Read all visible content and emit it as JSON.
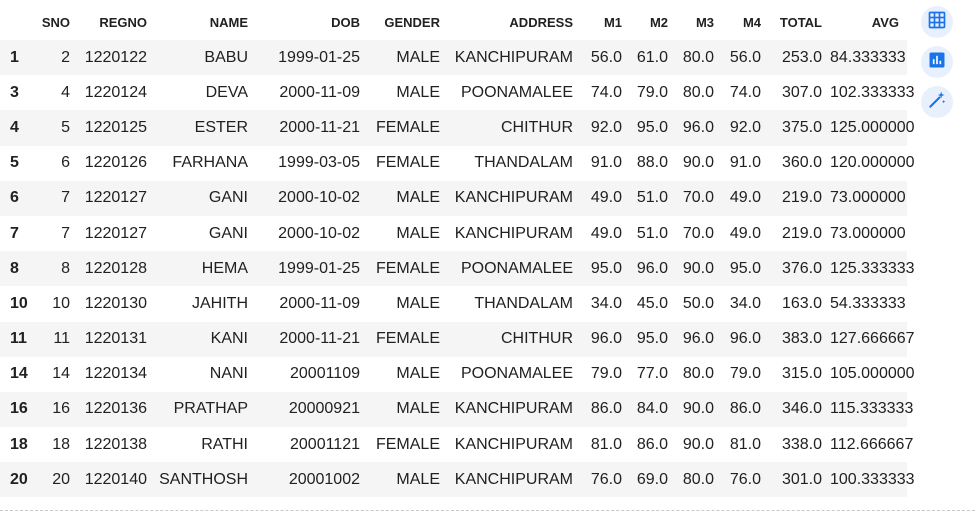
{
  "table": {
    "columns": [
      "",
      "SNO",
      "REGNO",
      "NAME",
      "DOB",
      "GENDER",
      "ADDRESS",
      "M1",
      "M2",
      "M3",
      "M4",
      "TOTAL",
      "AVG"
    ],
    "rows": [
      [
        "1",
        "2",
        "1220122",
        "BABU",
        "1999-01-25",
        "MALE",
        "KANCHIPURAM",
        "56.0",
        "61.0",
        "80.0",
        "56.0",
        "253.0",
        "84.333333"
      ],
      [
        "3",
        "4",
        "1220124",
        "DEVA",
        "2000-11-09",
        "MALE",
        "POONAMALEE",
        "74.0",
        "79.0",
        "80.0",
        "74.0",
        "307.0",
        "102.333333"
      ],
      [
        "4",
        "5",
        "1220125",
        "ESTER",
        "2000-11-21",
        "FEMALE",
        "CHITHUR",
        "92.0",
        "95.0",
        "96.0",
        "92.0",
        "375.0",
        "125.000000"
      ],
      [
        "5",
        "6",
        "1220126",
        "FARHANA",
        "1999-03-05",
        "FEMALE",
        "THANDALAM",
        "91.0",
        "88.0",
        "90.0",
        "91.0",
        "360.0",
        "120.000000"
      ],
      [
        "6",
        "7",
        "1220127",
        "GANI",
        "2000-10-02",
        "MALE",
        "KANCHIPURAM",
        "49.0",
        "51.0",
        "70.0",
        "49.0",
        "219.0",
        "73.000000"
      ],
      [
        "7",
        "7",
        "1220127",
        "GANI",
        "2000-10-02",
        "MALE",
        "KANCHIPURAM",
        "49.0",
        "51.0",
        "70.0",
        "49.0",
        "219.0",
        "73.000000"
      ],
      [
        "8",
        "8",
        "1220128",
        "HEMA",
        "1999-01-25",
        "FEMALE",
        "POONAMALEE",
        "95.0",
        "96.0",
        "90.0",
        "95.0",
        "376.0",
        "125.333333"
      ],
      [
        "10",
        "10",
        "1220130",
        "JAHITH",
        "2000-11-09",
        "MALE",
        "THANDALAM",
        "34.0",
        "45.0",
        "50.0",
        "34.0",
        "163.0",
        "54.333333"
      ],
      [
        "11",
        "11",
        "1220131",
        "KANI",
        "2000-11-21",
        "FEMALE",
        "CHITHUR",
        "96.0",
        "95.0",
        "96.0",
        "96.0",
        "383.0",
        "127.666667"
      ],
      [
        "14",
        "14",
        "1220134",
        "NANI",
        "20001109",
        "MALE",
        "POONAMALEE",
        "79.0",
        "77.0",
        "80.0",
        "79.0",
        "315.0",
        "105.000000"
      ],
      [
        "16",
        "16",
        "1220136",
        "PRATHAP",
        "20000921",
        "MALE",
        "KANCHIPURAM",
        "86.0",
        "84.0",
        "90.0",
        "86.0",
        "346.0",
        "115.333333"
      ],
      [
        "18",
        "18",
        "1220138",
        "RATHI",
        "20001121",
        "FEMALE",
        "KANCHIPURAM",
        "81.0",
        "86.0",
        "90.0",
        "81.0",
        "338.0",
        "112.666667"
      ],
      [
        "20",
        "20",
        "1220140",
        "SANTHOSH",
        "20001002",
        "MALE",
        "KANCHIPURAM",
        "76.0",
        "69.0",
        "80.0",
        "76.0",
        "301.0",
        "100.333333"
      ]
    ]
  },
  "tools": [
    {
      "icon": "table-icon",
      "color": "#1a73e8"
    },
    {
      "icon": "bar-chart-icon",
      "color": "#1a73e8"
    },
    {
      "icon": "magic-wand-icon",
      "color": "#1a73e8"
    }
  ]
}
